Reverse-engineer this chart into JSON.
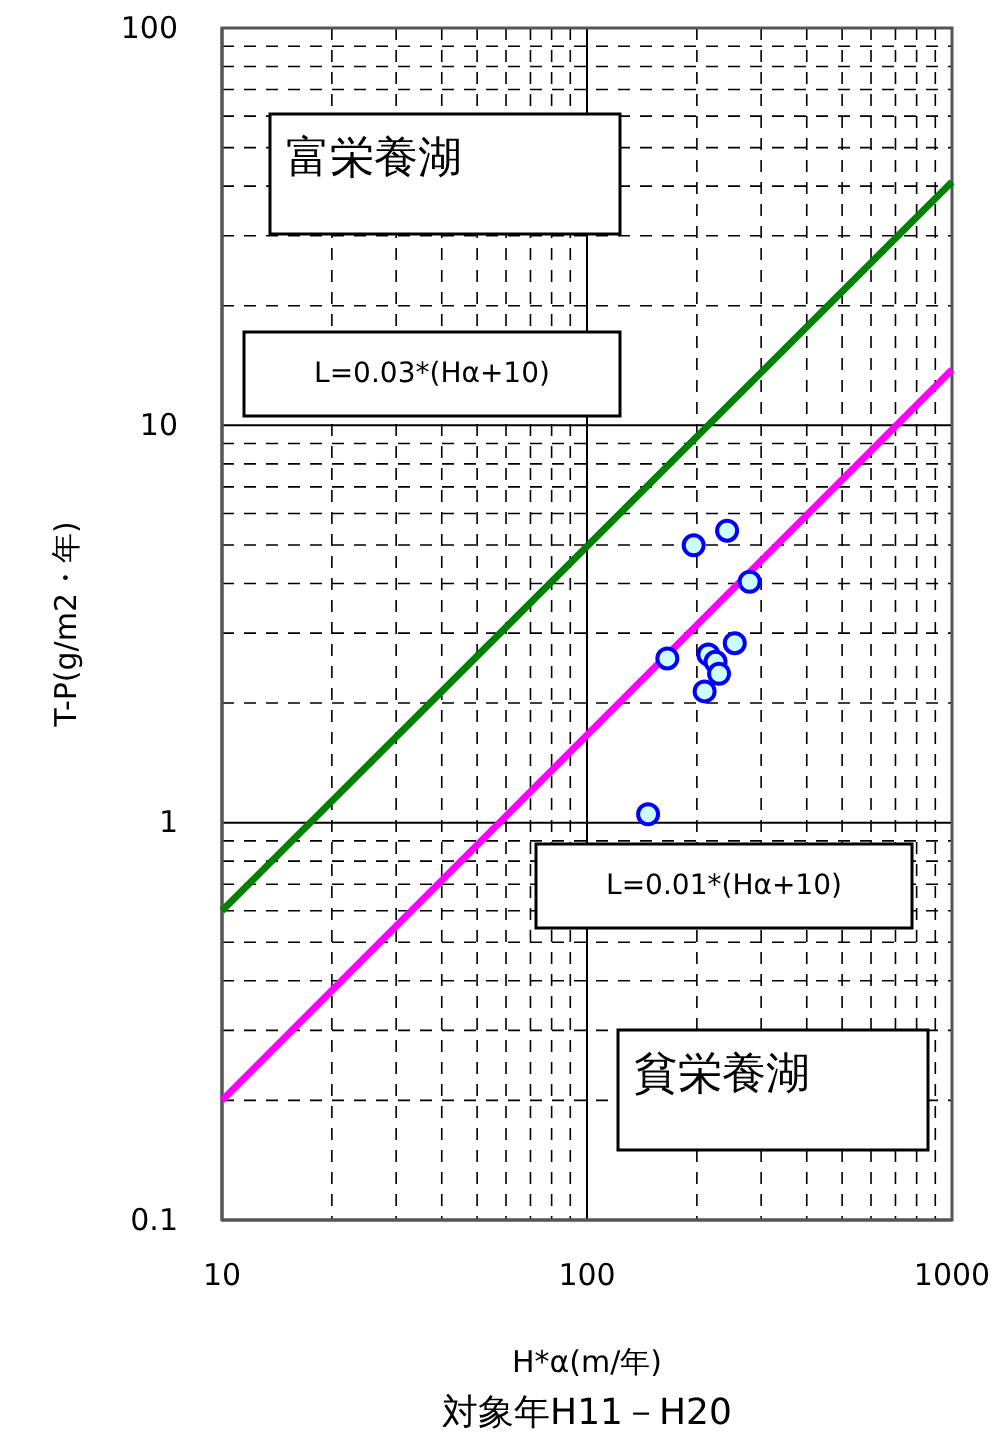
{
  "chart_data": {
    "type": "scatter",
    "xlabel": "H*α(m/年)",
    "ylabel": "T-P(g/m2・年)",
    "log": "xy",
    "grid": true,
    "marker": "circle",
    "xlim": [
      10,
      1000
    ],
    "ylim": [
      0.1,
      100
    ],
    "xticks": [
      10,
      {
        "value": 20,
        "label": null
      },
      {
        "value": 30,
        "label": null
      },
      {
        "value": 40,
        "label": null
      },
      {
        "value": 50,
        "label": null
      },
      {
        "value": 60,
        "label": null
      },
      {
        "value": 70,
        "label": null
      },
      {
        "value": 80,
        "label": null
      },
      {
        "value": 90,
        "label": null
      },
      100,
      {
        "value": 200,
        "label": null
      },
      {
        "value": 300,
        "label": null
      },
      {
        "value": 400,
        "label": null
      },
      {
        "value": 500,
        "label": null
      },
      {
        "value": 600,
        "label": null
      },
      {
        "value": 700,
        "label": null
      },
      {
        "value": 800,
        "label": null
      },
      {
        "value": 900,
        "label": null
      },
      1000
    ],
    "yticks": [
      0.1,
      {
        "value": 0.2,
        "label": null
      },
      {
        "value": 0.3,
        "label": null
      },
      {
        "value": 0.4,
        "label": null
      },
      {
        "value": 0.5,
        "label": null
      },
      {
        "value": 0.6,
        "label": null
      },
      {
        "value": 0.7,
        "label": null
      },
      {
        "value": 0.8,
        "label": null
      },
      {
        "value": 0.9,
        "label": null
      },
      1,
      {
        "value": 2,
        "label": null
      },
      {
        "value": 3,
        "label": null
      },
      {
        "value": 4,
        "label": null
      },
      {
        "value": 5,
        "label": null
      },
      {
        "value": 6,
        "label": null
      },
      {
        "value": 7,
        "label": null
      },
      {
        "value": 8,
        "label": null
      },
      {
        "value": 9,
        "label": null
      },
      10,
      {
        "value": 20,
        "label": null
      },
      {
        "value": 30,
        "label": null
      },
      {
        "value": 40,
        "label": null
      },
      {
        "value": 50,
        "label": null
      },
      {
        "value": 60,
        "label": null
      },
      {
        "value": 70,
        "label": null
      },
      {
        "value": 80,
        "label": null
      },
      {
        "value": 90,
        "label": null
      },
      100
    ],
    "series": [
      {
        "type": "line",
        "color": "#008000",
        "x": [
          10,
          1000
        ],
        "values": [
          0.6,
          41
        ],
        "marker": "none"
      },
      {
        "type": "line",
        "color": "#ff00ff",
        "x": [
          10,
          1000
        ],
        "values": [
          0.2,
          13.8
        ],
        "marker": "none"
      },
      {
        "color": "#0000ff",
        "x": [
          196,
          242,
          279,
          166,
          215,
          225,
          230,
          254,
          210,
          147
        ],
        "values": [
          4.99,
          5.43,
          4.04,
          2.59,
          2.65,
          2.54,
          2.37,
          2.83,
          2.14,
          1.05
        ]
      }
    ],
    "annotations": [
      "富栄養湖",
      "貧栄養湖",
      "対象年H11－H20",
      "L=0.03*(Hα+10)",
      "L=0.01*(Hα+10)"
    ]
  }
}
